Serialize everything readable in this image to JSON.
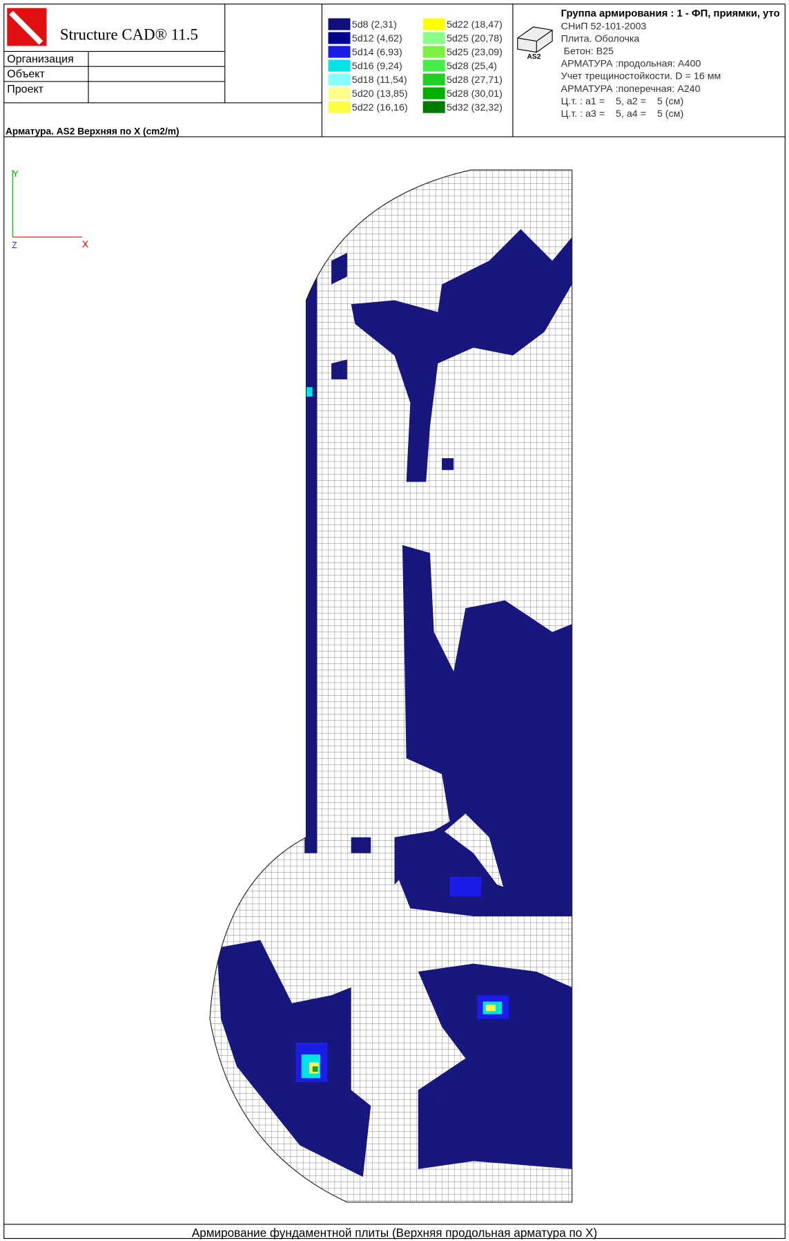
{
  "header": {
    "app_title": "Structure CAD® 11.5",
    "rows": [
      "Организация",
      "Объект",
      "Проект"
    ],
    "subtitle": "Арматура. AS2 Верхняя по X (cm2/m)",
    "icon_label": "AS2"
  },
  "legend": [
    {
      "label": "5d8 (2,31)",
      "color": "#10107a"
    },
    {
      "label": "5d12 (4,62)",
      "color": "#000090"
    },
    {
      "label": "5d14 (6,93)",
      "color": "#1c1ce8"
    },
    {
      "label": "5d16 (9,24)",
      "color": "#00e4e4"
    },
    {
      "label": "5d18 (11,54)",
      "color": "#88ffff"
    },
    {
      "label": "5d20 (13,85)",
      "color": "#ffff88"
    },
    {
      "label": "5d22 (16,16)",
      "color": "#ffff44"
    },
    {
      "label": "5d22 (18,47)",
      "color": "#ffff00"
    },
    {
      "label": "5d25 (20,78)",
      "color": "#88ff88"
    },
    {
      "label": "5d25 (23,09)",
      "color": "#7cf040"
    },
    {
      "label": "5d28 (25,4)",
      "color": "#44ee44"
    },
    {
      "label": "5d28 (27,71)",
      "color": "#20d020"
    },
    {
      "label": "5d28 (30,01)",
      "color": "#00b000"
    },
    {
      "label": "5d32 (32,32)",
      "color": "#007a00"
    }
  ],
  "info": {
    "title": "Группа армирования : 1 - ФП, приямки, уто",
    "lines": [
      "СНиП 52-101-2003",
      "Плита. Оболочка",
      " Бетон: B25",
      "АРМАТУРА :продольная: A400",
      "Учет трещиностойкости. D = 16 мм",
      "АРМАТУРА :поперечная: A240",
      "Ц.т. : a1 =    5, a2 =    5 (см)",
      "Ц.т. : a3 =    5, a4 =    5 (см)"
    ]
  },
  "axes": {
    "y": "Y",
    "z": "Z",
    "x": "X"
  },
  "footer": "Армирование фундаментной плиты (Верхняя продольная арматура по X)"
}
